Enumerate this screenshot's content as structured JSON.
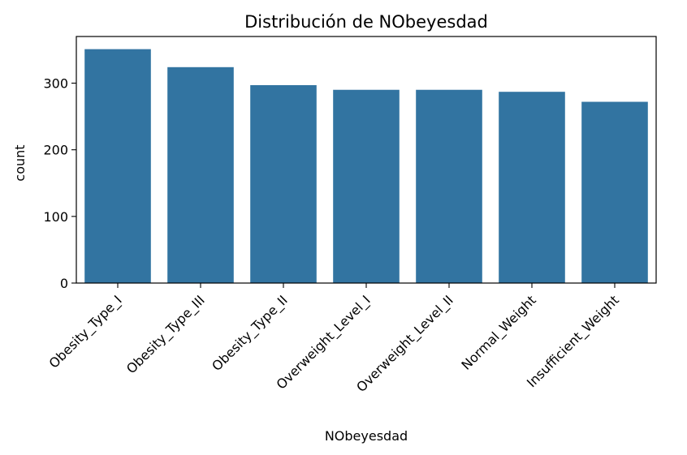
{
  "chart_data": {
    "type": "bar",
    "title": "Distribución de NObeyesdad",
    "xlabel": "NObeyesdad",
    "ylabel": "count",
    "categories": [
      "Obesity_Type_I",
      "Obesity_Type_III",
      "Obesity_Type_II",
      "Overweight_Level_I",
      "Overweight_Level_II",
      "Normal_Weight",
      "Insufficient_Weight"
    ],
    "values": [
      351,
      324,
      297,
      290,
      290,
      287,
      272
    ],
    "ylim": [
      0,
      370
    ],
    "yticks": [
      0,
      100,
      200,
      300
    ],
    "bar_color": "#3274a1",
    "grid": false,
    "legend": "none"
  }
}
